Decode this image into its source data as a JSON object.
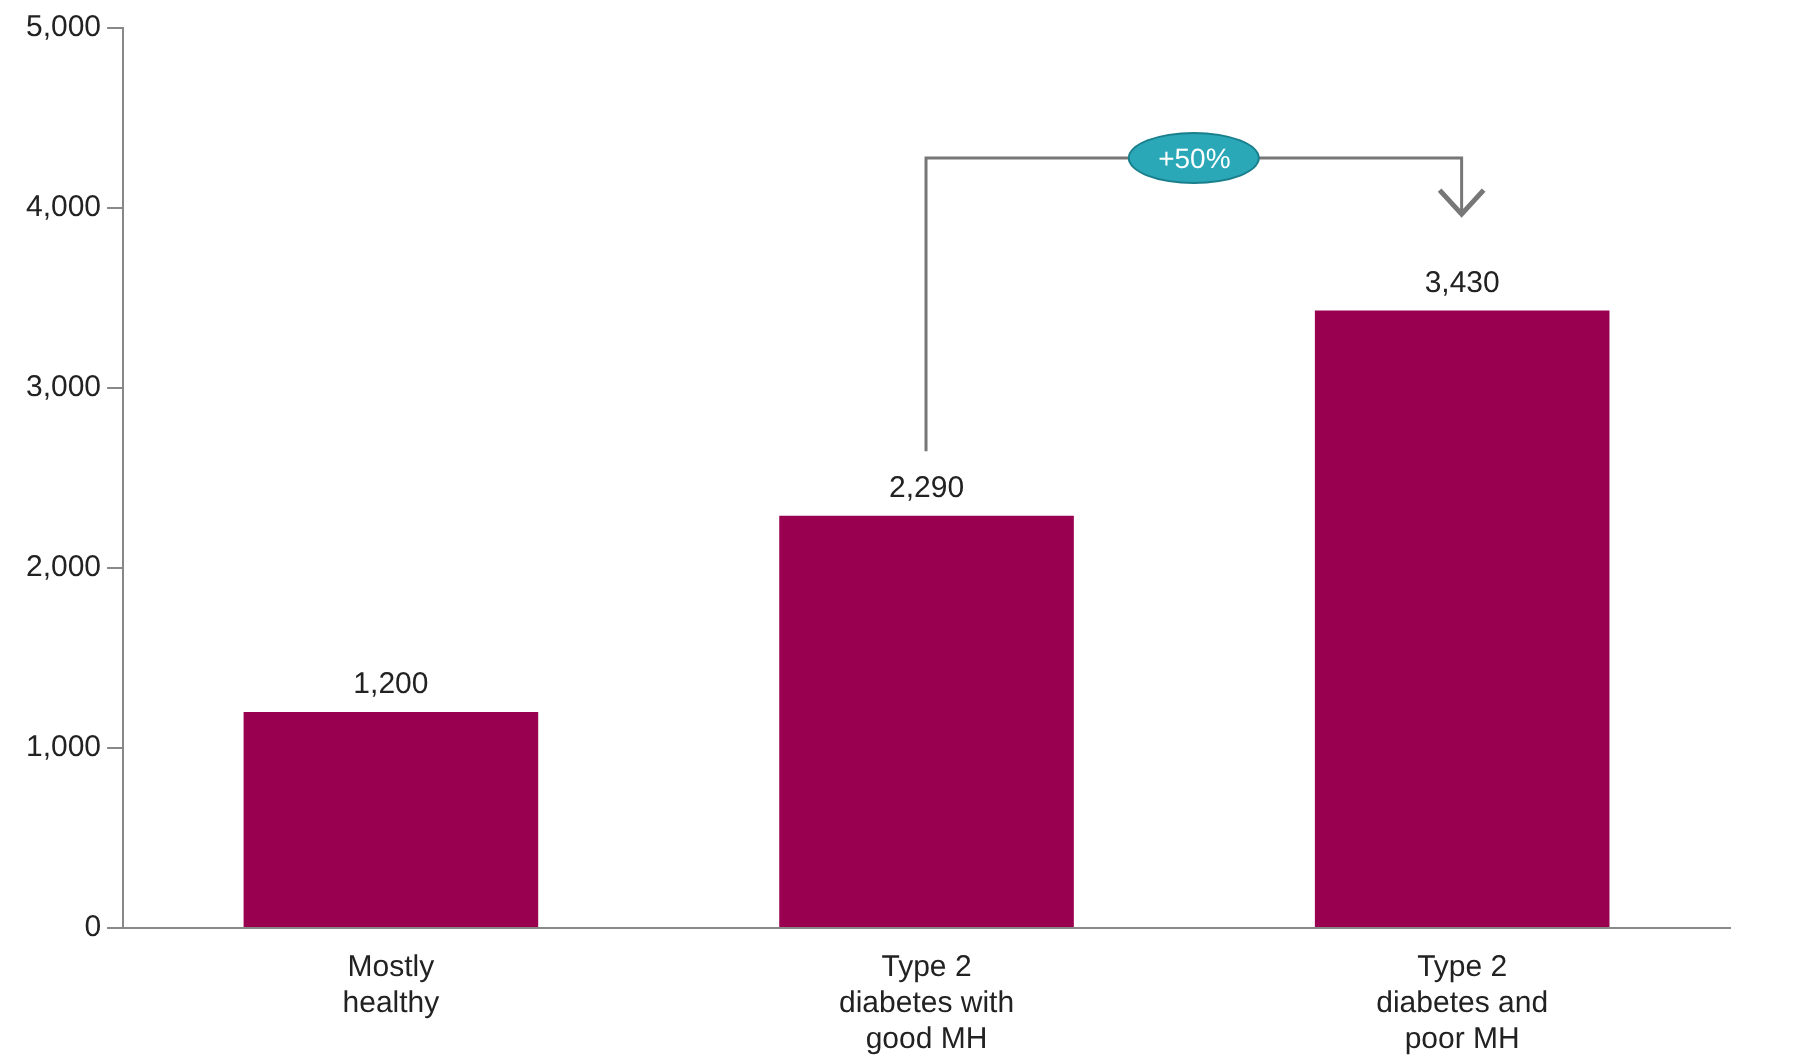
{
  "chart_data": {
    "type": "bar",
    "categories": [
      "Mostly healthy",
      "Type 2 diabetes with good MH",
      "Type 2 diabetes and poor MH"
    ],
    "values": [
      1200,
      2290,
      3430
    ],
    "color": "#990050",
    "ylim": [
      0,
      5000
    ],
    "yticks": [
      {
        "value": 0,
        "label": "0"
      },
      {
        "value": 1000,
        "label": "1,000"
      },
      {
        "value": 2000,
        "label": "2,000"
      },
      {
        "value": 3000,
        "label": "3,000"
      },
      {
        "value": 4000,
        "label": "4,000"
      },
      {
        "value": 5000,
        "label": "5,000"
      }
    ],
    "grid": false,
    "legend": false,
    "value_labels": [
      "1,200",
      "2,290",
      "3,430"
    ],
    "annotations": [
      "+50%"
    ]
  }
}
